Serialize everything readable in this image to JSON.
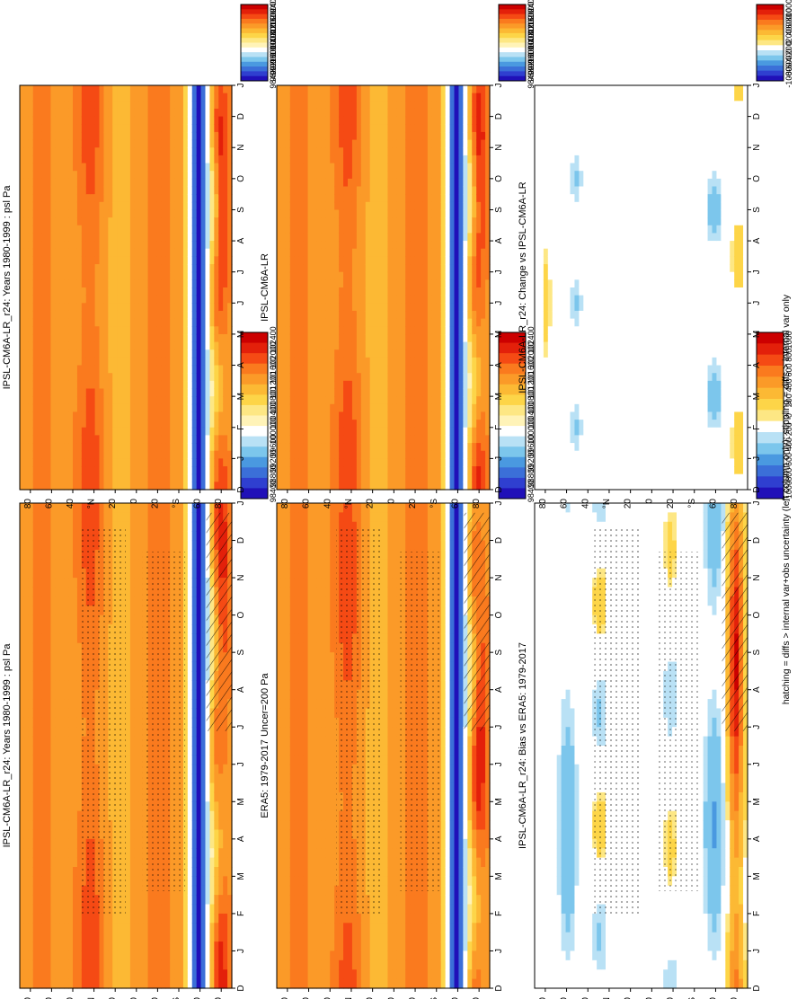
{
  "panels": [
    {
      "id": "p00",
      "title": "IPSL-CM6A-LR_r24: Years 1980-1999 : psl Pa",
      "kind": "psl",
      "diff": false,
      "seed": 1.0
    },
    {
      "id": "p01",
      "title": "IPSL-CM6A-LR_r24: Years 1980-1999 : psl Pa",
      "kind": "psl",
      "diff": false,
      "seed": 1.4
    },
    {
      "id": "p10",
      "title": "ERA5: 1979-2017 Uncer=200 Pa",
      "kind": "psl",
      "diff": false,
      "seed": 2.1
    },
    {
      "id": "p11",
      "title": "IPSL-CM6A-LR",
      "kind": "psl",
      "diff": false,
      "seed": 1.2
    },
    {
      "id": "p20",
      "title": "IPSL-CM6A-LR_r24: Bias vs ERA5: 1979-2017",
      "kind": "bias",
      "diff": true,
      "seed": 3.3
    },
    {
      "id": "p21",
      "title": "IPSL-CM6A-LR_r24: Change vs IPSL-CM6A-LR",
      "kind": "change",
      "diff": true,
      "seed": 4.7
    }
  ],
  "month_ticks": [
    "D",
    "J",
    "F",
    "M",
    "A",
    "M",
    "J",
    "J",
    "A",
    "S",
    "O",
    "N",
    "D",
    "J"
  ],
  "lat_ticks": [
    "80",
    "60",
    "40",
    "°N",
    "20",
    "0",
    "20",
    "°S",
    "60",
    "80"
  ],
  "colorbar_psl": [
    "102400",
    "102000",
    "101600",
    "101200",
    "100800",
    "100400",
    "100000",
    "99600",
    "99200",
    "98800",
    "98400"
  ],
  "colorbar_diff": [
    "1000",
    "800",
    "600",
    "400",
    "200",
    "0",
    "-200",
    "-400",
    "-600",
    "-800",
    "-1000"
  ],
  "footnote": "hatching = diffs > internal var+obs uncertainty (left column only); stippling = diffs > internal var only",
  "colors": {
    "psl_scale": [
      "#cc0000",
      "#e3200a",
      "#f54a14",
      "#fa7a1e",
      "#fb9a28",
      "#fcb934",
      "#fdd548",
      "#fde784",
      "#fff3b8",
      "#ffffff",
      "#b9e1f5",
      "#7cc6ec",
      "#4a99e0",
      "#3b6fd8",
      "#2f3fd0",
      "#2010b8"
    ],
    "diff_scale": [
      "#cc0000",
      "#e3200a",
      "#f54a14",
      "#fa7a1e",
      "#fb9a28",
      "#fcb934",
      "#fdd548",
      "#fde784",
      "#ffffff",
      "#b9e1f5",
      "#7cc6ec",
      "#4a99e0",
      "#3b6fd8",
      "#2f3fd0",
      "#2010b8"
    ]
  },
  "chart_data": {
    "type": "heatmap",
    "x_axis": "month (Dec to Jan, seasonal cycle)",
    "y_axis": "latitude (80N to 80S)",
    "colorbar_psl_range": [
      98400,
      102400
    ],
    "colorbar_diff_range": [
      -1000,
      1000
    ],
    "zonal_profile_psl": {
      "lat": [
        90,
        80,
        60,
        40,
        20,
        0,
        -20,
        -40,
        -60,
        -80,
        -90
      ],
      "value": [
        101300,
        101200,
        101100,
        101700,
        101500,
        101000,
        101300,
        100000,
        98700,
        99000,
        100600
      ]
    }
  }
}
